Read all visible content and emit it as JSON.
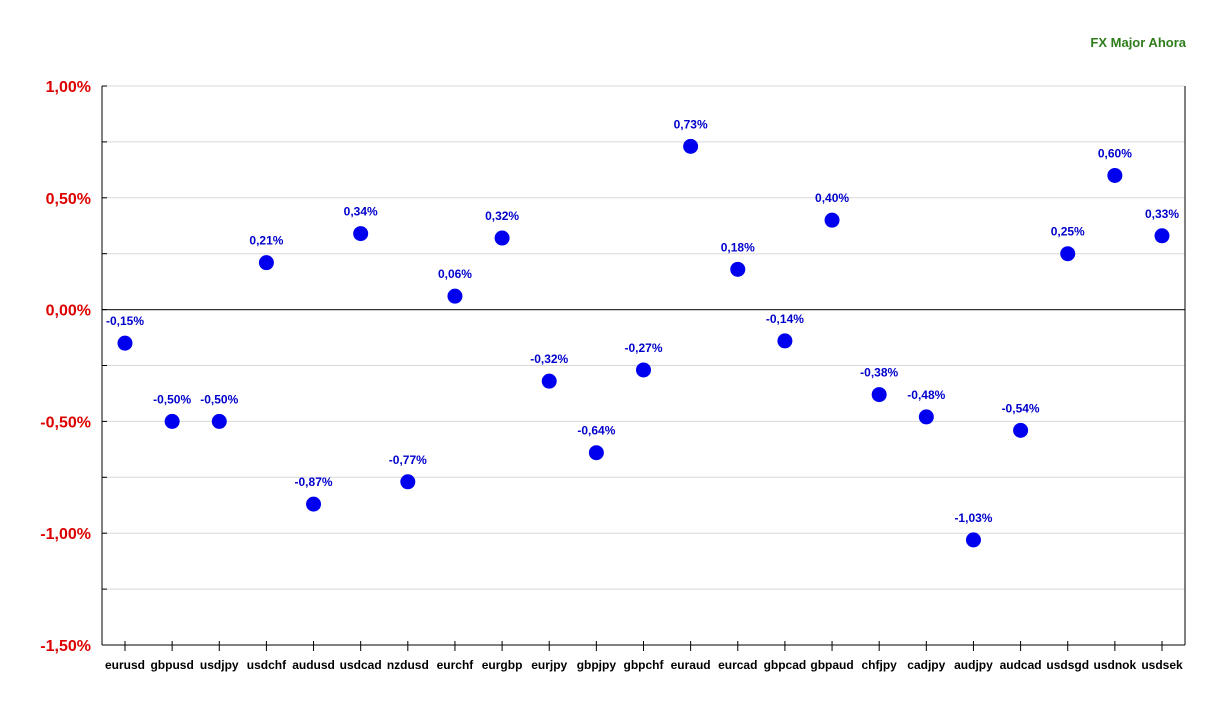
{
  "chart_data": {
    "type": "scatter",
    "title": "FX Major Ahora",
    "xlabel": "",
    "ylabel": "",
    "categories": [
      "eurusd",
      "gbpusd",
      "usdjpy",
      "usdchf",
      "audusd",
      "usdcad",
      "nzdusd",
      "eurchf",
      "eurgbp",
      "eurjpy",
      "gbpjpy",
      "gbpchf",
      "euraud",
      "eurcad",
      "gbpcad",
      "gbpaud",
      "chfjpy",
      "cadjpy",
      "audjpy",
      "audcad",
      "usdsgd",
      "usdnok",
      "usdsek"
    ],
    "values": [
      -0.15,
      -0.5,
      -0.5,
      0.21,
      -0.87,
      0.34,
      -0.77,
      0.06,
      0.32,
      -0.32,
      -0.64,
      -0.27,
      0.73,
      0.18,
      -0.14,
      0.4,
      -0.38,
      -0.48,
      -1.03,
      -0.54,
      0.25,
      0.6,
      0.33
    ],
    "data_labels": [
      "-0,15%",
      "-0,50%",
      "-0,50%",
      "0,21%",
      "-0,87%",
      "0,34%",
      "-0,77%",
      "0,06%",
      "0,32%",
      "-0,32%",
      "-0,64%",
      "-0,27%",
      "0,73%",
      "0,18%",
      "-0,14%",
      "0,40%",
      "-0,38%",
      "-0,48%",
      "-1,03%",
      "-0,54%",
      "0,25%",
      "0,60%",
      "0,33%"
    ],
    "y_tick_values": [
      1.0,
      0.5,
      0.0,
      -0.5,
      -1.0,
      -1.5
    ],
    "y_tick_labels": [
      "1,00%",
      "0,50%",
      "0,00%",
      "-0,50%",
      "-1,00%",
      "-1,50%"
    ],
    "ylim": [
      -1.5,
      1.0
    ],
    "grid": true,
    "colors": {
      "marker": "#0000ee",
      "data_label": "#0000cc",
      "y_tick": "#dd0000",
      "title": "#2e7d1a",
      "gridline": "#d8d8d8",
      "axis": "#000000"
    }
  }
}
